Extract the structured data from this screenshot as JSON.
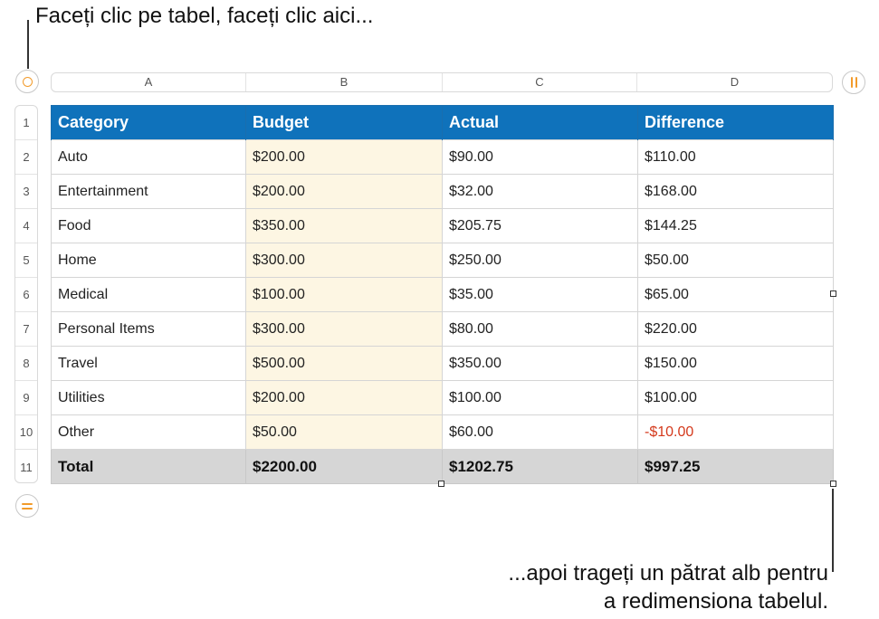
{
  "callouts": {
    "top": "Faceți clic pe tabel, faceți clic aici...",
    "bottom_line1": "...apoi trageți un pătrat alb pentru",
    "bottom_line2": "a redimensiona tabelul."
  },
  "controls": {
    "select_table_icon": "circle-icon",
    "add_column_icon": "column-bars-icon",
    "add_row_icon": "row-bars-icon",
    "accent_color": "#f29b2b"
  },
  "column_letters": [
    "A",
    "B",
    "C",
    "D"
  ],
  "row_numbers": [
    "1",
    "2",
    "3",
    "4",
    "5",
    "6",
    "7",
    "8",
    "9",
    "10",
    "11"
  ],
  "table": {
    "header_color": "#0f72bb",
    "headers": [
      "Category",
      "Budget",
      "Actual",
      "Difference"
    ],
    "rows": [
      {
        "category": "Auto",
        "budget": "$200.00",
        "actual": "$90.00",
        "difference": "$110.00"
      },
      {
        "category": "Entertainment",
        "budget": "$200.00",
        "actual": "$32.00",
        "difference": "$168.00"
      },
      {
        "category": "Food",
        "budget": "$350.00",
        "actual": "$205.75",
        "difference": "$144.25"
      },
      {
        "category": "Home",
        "budget": "$300.00",
        "actual": "$250.00",
        "difference": "$50.00"
      },
      {
        "category": "Medical",
        "budget": "$100.00",
        "actual": "$35.00",
        "difference": "$65.00"
      },
      {
        "category": "Personal Items",
        "budget": "$300.00",
        "actual": "$80.00",
        "difference": "$220.00"
      },
      {
        "category": "Travel",
        "budget": "$500.00",
        "actual": "$350.00",
        "difference": "$150.00"
      },
      {
        "category": "Utilities",
        "budget": "$200.00",
        "actual": "$100.00",
        "difference": "$100.00"
      },
      {
        "category": "Other",
        "budget": "$50.00",
        "actual": "$60.00",
        "difference": "-$10.00"
      }
    ],
    "total": {
      "category": "Total",
      "budget": "$2200.00",
      "actual": "$1202.75",
      "difference": "$997.25"
    },
    "negative_color": "#d4391c"
  }
}
